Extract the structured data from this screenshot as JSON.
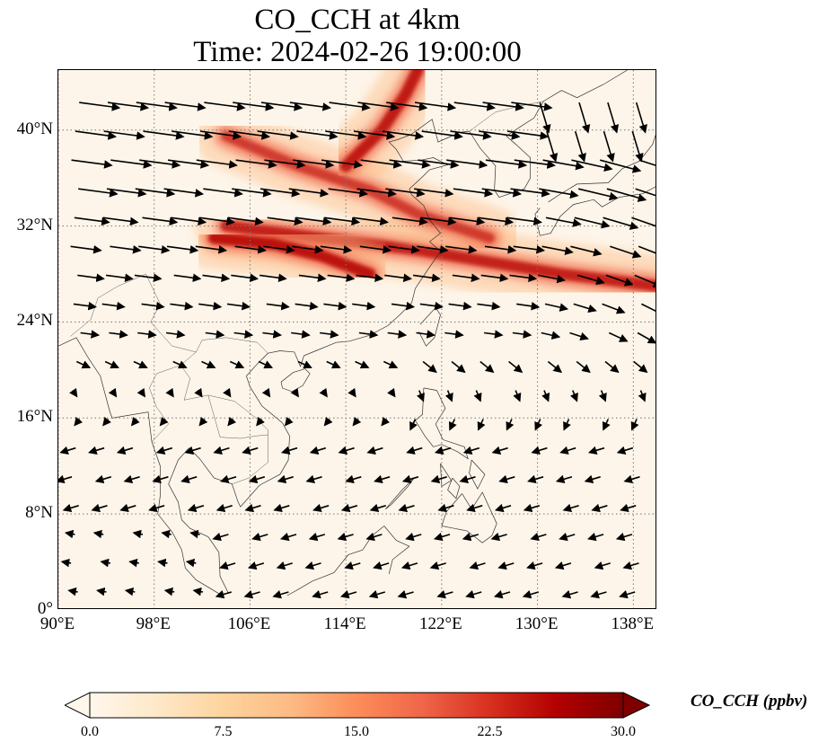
{
  "title": {
    "line1": "CO_CCH at 4km",
    "line2": "Time: 2024-02-26 19:00:00"
  },
  "map": {
    "variable": "CO_CCH",
    "level": "4km",
    "extent": {
      "lon_min": 90,
      "lon_max": 140,
      "lat_min": 0,
      "lat_max": 45
    },
    "gridlines": "dotted gray",
    "lat_labels": [
      "40°N",
      "32°N",
      "24°N",
      "16°N",
      "8°N",
      "0°"
    ],
    "lat_values": [
      40,
      32,
      24,
      16,
      8,
      0
    ],
    "lon_labels": [
      "90°E",
      "98°E",
      "106°E",
      "114°E",
      "122°E",
      "130°E",
      "138°E"
    ],
    "lon_values": [
      90,
      98,
      106,
      114,
      122,
      130,
      138
    ],
    "plumes": [
      {
        "name": "east-china-sea band",
        "path": [
          [
            104,
            32
          ],
          [
            112,
            31
          ],
          [
            120,
            30
          ],
          [
            126,
            29
          ],
          [
            132,
            28
          ],
          [
            140,
            27
          ]
        ],
        "level": 0.75
      },
      {
        "name": "north china plains branch",
        "path": [
          [
            104,
            39.5
          ],
          [
            110,
            37
          ],
          [
            116,
            35
          ],
          [
            120,
            33
          ],
          [
            126,
            31
          ]
        ],
        "level": 0.55
      },
      {
        "name": "northeast arm",
        "path": [
          [
            114,
            37
          ],
          [
            117,
            40
          ],
          [
            119,
            43
          ],
          [
            120,
            45
          ]
        ],
        "level": 0.8
      },
      {
        "name": "sichuan basin",
        "path": [
          [
            103,
            31
          ],
          [
            108,
            30.5
          ],
          [
            112,
            29.5
          ],
          [
            116,
            28
          ]
        ],
        "level": 0.85
      }
    ],
    "wind_vectors": "northwesterly/westerly over China and East China Sea; northeasterly trades over South China Sea"
  },
  "colorbar": {
    "label": "CO_CCH (ppbv)",
    "ticks": [
      "0.0",
      "7.5",
      "15.0",
      "22.5",
      "30.0"
    ],
    "tick_values": [
      0,
      7.5,
      15,
      22.5,
      30
    ],
    "min": 0,
    "max": 30,
    "colormap": "OrRd",
    "colors": [
      "#fff7ec",
      "#fee8c8",
      "#fdd49e",
      "#fdbb84",
      "#fc8d59",
      "#ef6548",
      "#d7301f",
      "#b30000",
      "#7f0000"
    ]
  }
}
